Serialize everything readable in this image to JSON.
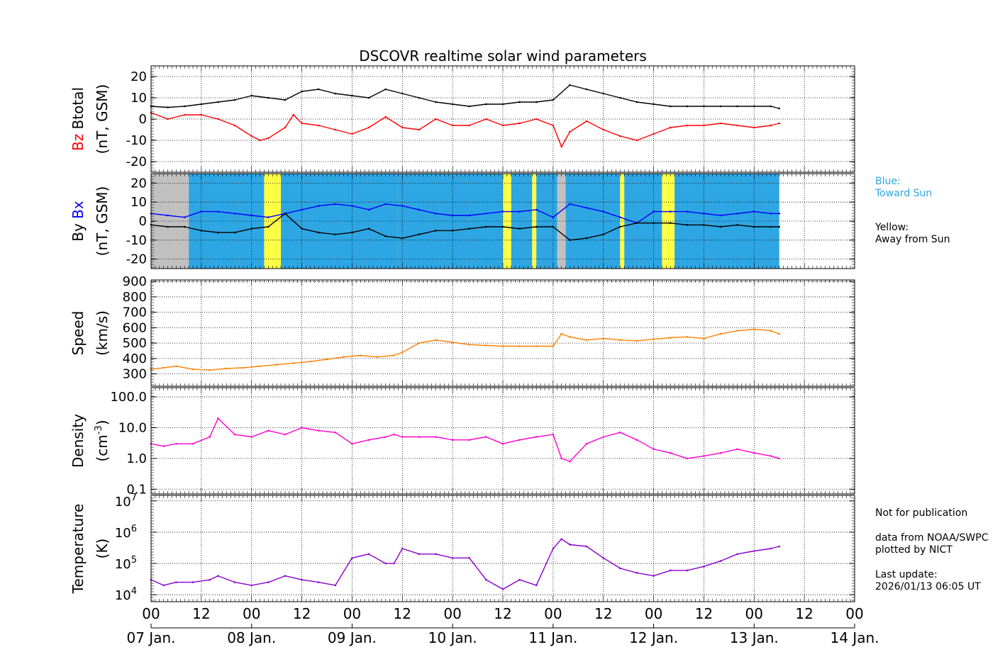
{
  "title": "DSCOVR realtime solar wind parameters",
  "colors": {
    "btotal": "#000000",
    "bz": "#ff0000",
    "by": "#000000",
    "bx": "#0000ff",
    "speed": "#ff8000",
    "density": "#ff00cc",
    "temperature": "#8800cc",
    "toward": "#2ea6e3",
    "away": "#ffff44",
    "nodata": "#c0c0c0"
  },
  "legend": {
    "blue_line1": "Blue:",
    "blue_line2": "Toward Sun",
    "yellow_line1": "Yellow:",
    "yellow_line2": "Away from Sun"
  },
  "notes": {
    "line1": "Not for publication",
    "line2": "data from NOAA/SWPC",
    "line3": "plotted by NICT",
    "line4": "Last update:",
    "line5": "2026/01/13 06:05 UT"
  },
  "chart_data": [
    {
      "type": "line",
      "panel": "magnetic-field-b",
      "ylabel_parts": [
        "Bz",
        "Btotal",
        "(nT, GSM)"
      ],
      "ylim": [
        -25,
        25
      ],
      "yticks": [
        -20,
        -10,
        0,
        10,
        20
      ],
      "x_unit": "hours since 07 Jan. 00 UT",
      "series": [
        {
          "name": "Btotal",
          "color_key": "btotal",
          "x": [
            0,
            4,
            8,
            12,
            16,
            20,
            24,
            28,
            32,
            36,
            40,
            44,
            48,
            52,
            56,
            60,
            64,
            68,
            72,
            76,
            80,
            84,
            88,
            92,
            96,
            100,
            104,
            108,
            112,
            116,
            120,
            124,
            128,
            132,
            136,
            140,
            144,
            148,
            150
          ],
          "y": [
            6,
            5.5,
            6,
            7,
            8,
            9,
            11,
            10,
            9,
            13,
            14,
            12,
            11,
            10,
            14,
            12,
            10,
            8,
            7,
            6,
            7,
            7,
            8,
            8,
            9,
            16,
            14,
            12,
            10,
            8,
            7,
            6,
            6,
            6,
            6,
            6,
            6,
            6,
            5
          ]
        },
        {
          "name": "Bz",
          "color_key": "bz",
          "x": [
            0,
            4,
            8,
            12,
            16,
            20,
            24,
            26,
            28,
            32,
            34,
            36,
            40,
            44,
            48,
            52,
            56,
            60,
            64,
            68,
            72,
            76,
            80,
            84,
            88,
            92,
            96,
            98,
            100,
            104,
            108,
            112,
            116,
            120,
            124,
            128,
            132,
            136,
            140,
            144,
            148,
            150
          ],
          "y": [
            3,
            0,
            2,
            2,
            0,
            -3,
            -8,
            -10,
            -9,
            -4,
            2,
            -2,
            -3,
            -5,
            -7,
            -4,
            1,
            -4,
            -5,
            0,
            -3,
            -3,
            0,
            -3,
            -2,
            0,
            -3,
            -13,
            -6,
            -1,
            -5,
            -8,
            -10,
            -7,
            -4,
            -3,
            -3,
            -2,
            -3,
            -4,
            -3,
            -2
          ]
        }
      ]
    },
    {
      "type": "line",
      "panel": "magnetic-field-xy",
      "ylabel_parts": [
        "By",
        "Bx",
        "(nT, GSM)"
      ],
      "ylim": [
        -25,
        25
      ],
      "yticks": [
        -20,
        -10,
        0,
        10,
        20
      ],
      "series": [
        {
          "name": "Bx",
          "color_key": "bx",
          "x": [
            0,
            4,
            8,
            12,
            16,
            20,
            24,
            28,
            32,
            36,
            40,
            44,
            48,
            52,
            56,
            60,
            64,
            68,
            72,
            76,
            80,
            84,
            88,
            92,
            96,
            100,
            104,
            108,
            112,
            116,
            120,
            124,
            128,
            132,
            136,
            140,
            144,
            148,
            150
          ],
          "y": [
            4,
            3,
            2,
            5,
            5,
            4,
            3,
            2,
            4,
            6,
            8,
            9,
            8,
            6,
            9,
            8,
            6,
            4,
            3,
            3,
            4,
            5,
            5,
            6,
            2,
            9,
            7,
            5,
            2,
            -1,
            5,
            5,
            5,
            4,
            3,
            4,
            5,
            4,
            4
          ]
        },
        {
          "name": "By",
          "color_key": "by",
          "x": [
            0,
            4,
            8,
            12,
            16,
            20,
            24,
            28,
            32,
            36,
            40,
            44,
            48,
            52,
            56,
            60,
            64,
            68,
            72,
            76,
            80,
            84,
            88,
            92,
            96,
            100,
            104,
            108,
            112,
            116,
            120,
            124,
            128,
            132,
            136,
            140,
            144,
            148,
            150
          ],
          "y": [
            -2,
            -3,
            -3,
            -5,
            -6,
            -6,
            -4,
            -3,
            4,
            -4,
            -6,
            -7,
            -6,
            -4,
            -8,
            -9,
            -7,
            -5,
            -5,
            -4,
            -3,
            -3,
            -4,
            -3,
            -3,
            -10,
            -9,
            -7,
            -3,
            -1,
            -1,
            -1,
            -2,
            -2,
            -3,
            -2,
            -3,
            -3,
            -3
          ]
        }
      ],
      "imf_sectors": [
        {
          "from": 0,
          "to": 9,
          "sector": "nodata"
        },
        {
          "from": 9,
          "to": 27,
          "sector": "toward"
        },
        {
          "from": 27,
          "to": 31,
          "sector": "away"
        },
        {
          "from": 31,
          "to": 59,
          "sector": "toward"
        },
        {
          "from": 59,
          "to": 84,
          "sector": "toward"
        },
        {
          "from": 84,
          "to": 86,
          "sector": "away"
        },
        {
          "from": 86,
          "to": 91,
          "sector": "toward"
        },
        {
          "from": 91,
          "to": 92,
          "sector": "away"
        },
        {
          "from": 92,
          "to": 97,
          "sector": "toward"
        },
        {
          "from": 97,
          "to": 99,
          "sector": "nodata"
        },
        {
          "from": 99,
          "to": 112,
          "sector": "toward"
        },
        {
          "from": 112,
          "to": 113,
          "sector": "away"
        },
        {
          "from": 113,
          "to": 122,
          "sector": "toward"
        },
        {
          "from": 122,
          "to": 125,
          "sector": "away"
        },
        {
          "from": 125,
          "to": 150,
          "sector": "toward"
        }
      ]
    },
    {
      "type": "line",
      "panel": "speed",
      "ylabel_parts": [
        "Speed",
        "(km/s)"
      ],
      "ylim": [
        220,
        910
      ],
      "yticks": [
        300,
        400,
        500,
        600,
        700,
        800,
        900
      ],
      "series": [
        {
          "name": "Speed",
          "color_key": "speed",
          "x": [
            0,
            3,
            6,
            10,
            14,
            18,
            22,
            26,
            30,
            34,
            38,
            42,
            46,
            50,
            54,
            58,
            60,
            64,
            68,
            72,
            76,
            80,
            84,
            88,
            92,
            96,
            98,
            100,
            104,
            108,
            112,
            116,
            120,
            124,
            128,
            132,
            136,
            140,
            144,
            148,
            150
          ],
          "y": [
            330,
            340,
            350,
            330,
            325,
            335,
            340,
            350,
            360,
            370,
            380,
            395,
            410,
            420,
            410,
            420,
            440,
            500,
            520,
            505,
            490,
            485,
            480,
            480,
            480,
            480,
            560,
            540,
            520,
            530,
            520,
            515,
            525,
            535,
            540,
            530,
            560,
            580,
            590,
            580,
            560
          ]
        }
      ]
    },
    {
      "type": "line",
      "panel": "density",
      "ylabel_parts": [
        "Density",
        "(cm",
        "-3",
        ")"
      ],
      "yscale": "log",
      "ylim": [
        0.07,
        200
      ],
      "yticks": [
        0.1,
        1.0,
        10.0,
        100.0
      ],
      "ytick_labels": [
        "0.1",
        "1.0",
        "10.0",
        "100.0"
      ],
      "series": [
        {
          "name": "Density",
          "color_key": "density",
          "x": [
            0,
            3,
            6,
            10,
            14,
            16,
            20,
            24,
            28,
            32,
            36,
            40,
            44,
            48,
            52,
            56,
            58,
            60,
            64,
            68,
            72,
            76,
            80,
            84,
            88,
            92,
            96,
            98,
            100,
            104,
            108,
            112,
            116,
            120,
            124,
            128,
            132,
            136,
            140,
            144,
            148,
            150
          ],
          "y": [
            3,
            2.5,
            3,
            3,
            5,
            20,
            6,
            5,
            8,
            6,
            10,
            8,
            7,
            3,
            4,
            5,
            6,
            5,
            5,
            5,
            4,
            4,
            5,
            3,
            4,
            5,
            6,
            1,
            0.8,
            3,
            5,
            7,
            4,
            2,
            1.5,
            1,
            1.2,
            1.5,
            2,
            1.5,
            1.2,
            1
          ]
        }
      ]
    },
    {
      "type": "line",
      "panel": "temperature",
      "ylabel_parts": [
        "Temperature",
        "(K)"
      ],
      "yscale": "log",
      "ylim": [
        6000,
        15000000
      ],
      "yticks": [
        10000,
        100000,
        1000000,
        10000000
      ],
      "ytick_labels": [
        [
          "10",
          "4"
        ],
        [
          "10",
          "5"
        ],
        [
          "10",
          "6"
        ],
        [
          "10",
          "7"
        ]
      ],
      "series": [
        {
          "name": "Temperature",
          "color_key": "temperature",
          "x": [
            0,
            3,
            6,
            10,
            14,
            16,
            20,
            24,
            28,
            32,
            36,
            40,
            44,
            48,
            52,
            56,
            58,
            60,
            64,
            68,
            72,
            76,
            80,
            84,
            88,
            92,
            96,
            98,
            100,
            104,
            108,
            112,
            116,
            120,
            124,
            128,
            132,
            136,
            140,
            144,
            148,
            150
          ],
          "y": [
            30000,
            20000,
            25000,
            25000,
            30000,
            40000,
            25000,
            20000,
            25000,
            40000,
            30000,
            25000,
            20000,
            150000,
            200000,
            100000,
            100000,
            300000,
            200000,
            200000,
            150000,
            150000,
            30000,
            15000,
            30000,
            20000,
            300000,
            600000,
            400000,
            350000,
            150000,
            70000,
            50000,
            40000,
            60000,
            60000,
            80000,
            120000,
            200000,
            250000,
            300000,
            350000
          ]
        }
      ]
    }
  ],
  "x_axis": {
    "hour_ticks": [
      "00",
      "12",
      "00",
      "12",
      "00",
      "12",
      "00",
      "12",
      "00",
      "12",
      "00",
      "12",
      "00",
      "12",
      "00"
    ],
    "day_labels": [
      "07 Jan.",
      "08 Jan.",
      "09 Jan.",
      "10 Jan.",
      "11 Jan.",
      "12 Jan.",
      "13 Jan.",
      "14 Jan."
    ]
  }
}
